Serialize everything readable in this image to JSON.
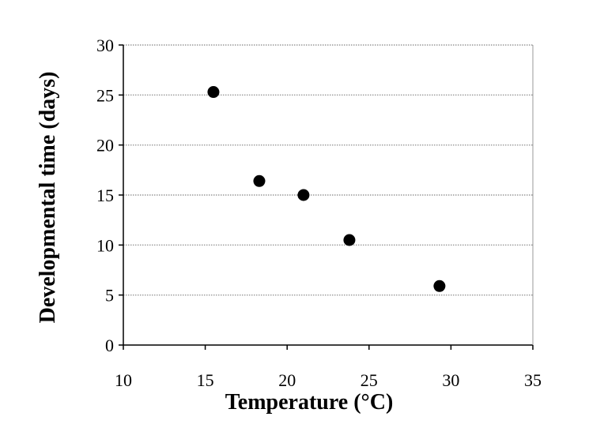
{
  "chart_data": {
    "type": "scatter",
    "xlabel": "Temperature (°C)",
    "ylabel": "Developmental time (days)",
    "xlim": [
      10,
      35
    ],
    "ylim": [
      0,
      30
    ],
    "xticks": [
      10,
      15,
      20,
      25,
      30,
      35
    ],
    "yticks": [
      0,
      5,
      10,
      15,
      20,
      25,
      30
    ],
    "grid": "horizontal-dotted",
    "legend": "none",
    "series": [
      {
        "points": [
          {
            "x": 15.5,
            "y": 25.3
          },
          {
            "x": 18.3,
            "y": 16.4
          },
          {
            "x": 21.0,
            "y": 15.0
          },
          {
            "x": 23.8,
            "y": 10.5
          },
          {
            "x": 29.3,
            "y": 5.9
          }
        ]
      }
    ],
    "colors": {
      "marker": "#000000",
      "grid": "#999999",
      "axis": "#000000"
    }
  }
}
